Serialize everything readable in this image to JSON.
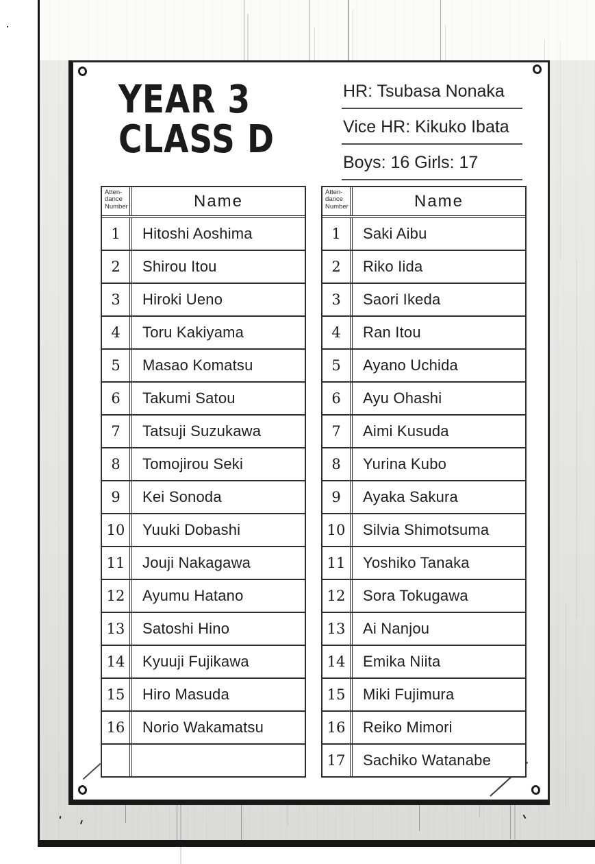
{
  "poster": {
    "title": {
      "line1": "YEAR 3",
      "line2": "CLASS D"
    },
    "info_lines": [
      "HR: Tsubasa Nonaka",
      "Vice HR: Kikuko Ibata",
      "Boys: 16 Girls: 17"
    ]
  },
  "roster": {
    "attendance_header_lines": [
      "Atten-",
      "dance",
      "Number"
    ],
    "name_header": "Name",
    "boys": [
      {
        "number": "1",
        "name": "Hitoshi Aoshima"
      },
      {
        "number": "2",
        "name": "Shirou Itou"
      },
      {
        "number": "3",
        "name": "Hiroki Ueno"
      },
      {
        "number": "4",
        "name": "Toru Kakiyama"
      },
      {
        "number": "5",
        "name": "Masao Komatsu"
      },
      {
        "number": "6",
        "name": "Takumi Satou"
      },
      {
        "number": "7",
        "name": "Tatsuji Suzukawa"
      },
      {
        "number": "8",
        "name": "Tomojirou Seki"
      },
      {
        "number": "9",
        "name": "Kei Sonoda"
      },
      {
        "number": "10",
        "name": "Yuuki Dobashi"
      },
      {
        "number": "11",
        "name": "Jouji Nakagawa"
      },
      {
        "number": "12",
        "name": "Ayumu Hatano"
      },
      {
        "number": "13",
        "name": "Satoshi Hino"
      },
      {
        "number": "14",
        "name": "Kyuuji Fujikawa"
      },
      {
        "number": "15",
        "name": "Hiro Masuda"
      },
      {
        "number": "16",
        "name": "Norio Wakamatsu"
      },
      {
        "number": "",
        "name": ""
      }
    ],
    "girls": [
      {
        "number": "1",
        "name": "Saki Aibu"
      },
      {
        "number": "2",
        "name": "Riko Iida"
      },
      {
        "number": "3",
        "name": "Saori Ikeda"
      },
      {
        "number": "4",
        "name": "Ran Itou"
      },
      {
        "number": "5",
        "name": "Ayano Uchida"
      },
      {
        "number": "6",
        "name": "Ayu Ohashi"
      },
      {
        "number": "7",
        "name": "Aimi Kusuda"
      },
      {
        "number": "8",
        "name": "Yurina Kubo"
      },
      {
        "number": "9",
        "name": "Ayaka Sakura"
      },
      {
        "number": "10",
        "name": "Silvia Shimotsuma"
      },
      {
        "number": "11",
        "name": "Yoshiko Tanaka"
      },
      {
        "number": "12",
        "name": "Sora Tokugawa"
      },
      {
        "number": "13",
        "name": "Ai Nanjou"
      },
      {
        "number": "14",
        "name": "Emika Niita"
      },
      {
        "number": "15",
        "name": "Miki Fujimura"
      },
      {
        "number": "16",
        "name": "Reiko Mimori"
      },
      {
        "number": "17",
        "name": "Sachiko Watanabe"
      }
    ]
  },
  "colors": {
    "ink": "#1b1b1b",
    "table_border": "#2e2e2e",
    "wall": "#f0f0ed",
    "paper": "#ffffff",
    "panel_rule": "#111111"
  }
}
